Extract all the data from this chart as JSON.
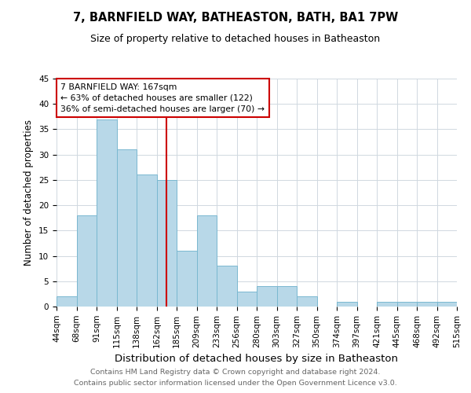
{
  "title": "7, BARNFIELD WAY, BATHEASTON, BATH, BA1 7PW",
  "subtitle": "Size of property relative to detached houses in Batheaston",
  "xlabel": "Distribution of detached houses by size in Batheaston",
  "ylabel": "Number of detached properties",
  "footer_line1": "Contains HM Land Registry data © Crown copyright and database right 2024.",
  "footer_line2": "Contains public sector information licensed under the Open Government Licence v3.0.",
  "bin_labels": [
    "44sqm",
    "68sqm",
    "91sqm",
    "115sqm",
    "138sqm",
    "162sqm",
    "185sqm",
    "209sqm",
    "233sqm",
    "256sqm",
    "280sqm",
    "303sqm",
    "327sqm",
    "350sqm",
    "374sqm",
    "397sqm",
    "421sqm",
    "445sqm",
    "468sqm",
    "492sqm",
    "515sqm"
  ],
  "values": [
    2,
    18,
    37,
    31,
    26,
    25,
    11,
    18,
    8,
    3,
    4,
    4,
    2,
    0,
    1,
    0,
    1,
    1,
    1,
    1
  ],
  "bar_color": "#b8d8e8",
  "bar_edge_color": "#7ab8d0",
  "vline_position": 5.5,
  "vline_color": "#cc0000",
  "annotation_text": "7 BARNFIELD WAY: 167sqm\n← 63% of detached houses are smaller (122)\n36% of semi-detached houses are larger (70) →",
  "annotation_box_facecolor": "#ffffff",
  "annotation_box_edgecolor": "#cc0000",
  "ylim": [
    0,
    45
  ],
  "yticks": [
    0,
    5,
    10,
    15,
    20,
    25,
    30,
    35,
    40,
    45
  ],
  "grid_color": "#d0d8e0",
  "background_color": "#ffffff",
  "title_fontsize": 10.5,
  "subtitle_fontsize": 9,
  "ylabel_fontsize": 8.5,
  "xlabel_fontsize": 9.5,
  "tick_fontsize": 7.5,
  "annotation_fontsize": 7.8,
  "footer_fontsize": 6.8,
  "footer_color": "#666666"
}
